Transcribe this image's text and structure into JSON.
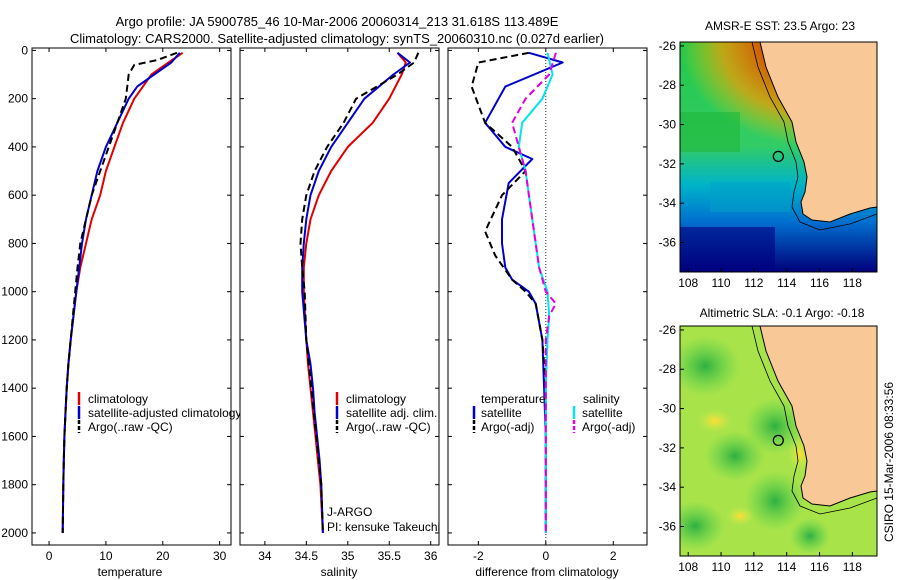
{
  "header": {
    "line1": "Argo profile: JA 5900785_46 10-Mar-2006 20060314_213 31.618S 113.489E",
    "line2": "Climatology: CARS2000. Satellite-adjusted climatology: synTS_20060310.nc (0.027d earlier)"
  },
  "side_stamp": "CSIRO 15-Mar-2006 08:33:56",
  "colors": {
    "climatology": "#e00000",
    "satellite": "#0000cc",
    "argo": "#000000",
    "sal_satellite": "#00e5ee",
    "sal_argo": "#e000e0"
  },
  "chart_data": [
    {
      "type": "line",
      "id": "temperature",
      "xlabel": "temperature",
      "ylim": [
        2050,
        -10
      ],
      "xlim": [
        -3,
        32
      ],
      "xticks": [
        0,
        10,
        20,
        30
      ],
      "yticks": [
        0,
        200,
        400,
        600,
        800,
        1000,
        1200,
        1400,
        1600,
        1800,
        2000
      ],
      "legend": [
        "climatology",
        "satellite-adjusted climatology",
        "Argo(..raw -QC)"
      ],
      "series": [
        {
          "name": "climatology",
          "color": "#e00000",
          "dash": "",
          "x": [
            23.5,
            21,
            18,
            16.5,
            15,
            13,
            11.5,
            10,
            9,
            7.5,
            6.5,
            5.5,
            4.8,
            4.3,
            3.8,
            3.4,
            3.1,
            2.9,
            2.7,
            2.6,
            2.5,
            2.4
          ],
          "y": [
            10,
            50,
            100,
            150,
            200,
            300,
            400,
            500,
            600,
            700,
            800,
            900,
            1000,
            1100,
            1200,
            1300,
            1400,
            1500,
            1600,
            1700,
            1800,
            2000
          ]
        },
        {
          "name": "satellite-adjusted climatology",
          "color": "#0000cc",
          "dash": "",
          "x": [
            23,
            21.5,
            18.5,
            15.5,
            14,
            12,
            10,
            8.5,
            7.5,
            6.5,
            5.8,
            5.3,
            4.8,
            4.3,
            3.8,
            3.4,
            3.1,
            2.9,
            2.7,
            2.6,
            2.5,
            2.4
          ],
          "y": [
            10,
            50,
            100,
            150,
            200,
            300,
            400,
            500,
            600,
            700,
            800,
            900,
            1000,
            1100,
            1200,
            1300,
            1400,
            1500,
            1600,
            1700,
            1800,
            2000
          ]
        },
        {
          "name": "Argo(..raw -QC)",
          "color": "#000000",
          "dash": "7,4",
          "x": [
            22.5,
            19,
            15,
            14,
            13.5,
            12,
            10.5,
            9,
            7.5,
            6.5,
            5.5,
            5,
            4.6,
            4.2,
            3.8,
            3.4,
            3.1,
            2.9,
            2.7,
            2.6,
            2.5,
            2.4
          ],
          "y": [
            10,
            40,
            60,
            100,
            200,
            300,
            400,
            500,
            600,
            700,
            800,
            900,
            1000,
            1100,
            1200,
            1300,
            1400,
            1500,
            1600,
            1700,
            1800,
            2000
          ]
        }
      ]
    },
    {
      "type": "line",
      "id": "salinity",
      "xlabel": "salinity",
      "ylim": [
        2050,
        -10
      ],
      "xlim": [
        33.7,
        36.1
      ],
      "xticks": [
        34,
        34.5,
        35,
        35.5,
        36
      ],
      "legend": [
        "climatology",
        "satellite adj. clim.",
        "Argo(..raw -QC)"
      ],
      "annotation": [
        "J-ARGO",
        "PI: kensuke Takeuchi"
      ],
      "series": [
        {
          "name": "climatology",
          "color": "#e00000",
          "dash": "",
          "x": [
            35.6,
            35.7,
            35.65,
            35.5,
            35.3,
            35.0,
            34.8,
            34.65,
            34.55,
            34.5,
            34.47,
            34.47,
            34.5,
            34.52,
            34.55,
            34.58,
            34.61,
            34.64,
            34.67,
            34.7
          ],
          "y": [
            10,
            50,
            100,
            200,
            300,
            400,
            500,
            600,
            700,
            800,
            900,
            1000,
            1200,
            1300,
            1400,
            1500,
            1600,
            1700,
            1800,
            2000
          ]
        },
        {
          "name": "satellite adj. clim.",
          "color": "#0000cc",
          "dash": "",
          "x": [
            35.6,
            35.75,
            35.55,
            35.2,
            35.0,
            34.8,
            34.65,
            34.55,
            34.5,
            34.47,
            34.45,
            34.45,
            34.5,
            34.55,
            34.58,
            34.6,
            34.63,
            34.66,
            34.68,
            34.7
          ],
          "y": [
            10,
            50,
            100,
            200,
            300,
            400,
            500,
            600,
            700,
            800,
            900,
            1000,
            1200,
            1300,
            1400,
            1500,
            1600,
            1700,
            1800,
            2000
          ]
        },
        {
          "name": "Argo(..raw -QC)",
          "color": "#000000",
          "dash": "7,4",
          "x": [
            35.85,
            35.8,
            35.6,
            35.1,
            34.95,
            34.75,
            34.6,
            34.5,
            34.45,
            34.43,
            34.45,
            34.48,
            34.5,
            34.53,
            34.56,
            34.59,
            34.62,
            34.65,
            34.68,
            34.7
          ],
          "y": [
            10,
            50,
            100,
            200,
            300,
            400,
            500,
            600,
            700,
            800,
            900,
            1000,
            1200,
            1300,
            1400,
            1500,
            1600,
            1700,
            1800,
            2000
          ]
        }
      ]
    },
    {
      "type": "line",
      "id": "difference",
      "xlabel": "difference from climatology",
      "ylim": [
        2050,
        -10
      ],
      "xlim": [
        -2.9,
        3.0
      ],
      "xticks": [
        -2,
        0,
        2
      ],
      "zero_line": 0,
      "legend_left_title": "temperature",
      "legend_right_title": "salinity",
      "legend_left": [
        "satellite",
        "Argo(-adj)"
      ],
      "legend_right": [
        "satellite",
        "Argo(-adj)"
      ],
      "series": [
        {
          "name": "temperature satellite",
          "color": "#0000cc",
          "dash": "",
          "x": [
            -0.5,
            0.5,
            -1.2,
            -1.8,
            -1.2,
            -0.4,
            -1.1,
            -1.3,
            -1.3,
            -1.2,
            -1.0,
            -0.5,
            -0.3,
            -0.1,
            -0.05,
            0,
            0,
            0,
            0
          ],
          "y": [
            10,
            50,
            150,
            300,
            400,
            450,
            550,
            700,
            800,
            900,
            950,
            1000,
            1050,
            1200,
            1400,
            1600,
            1800,
            1900,
            2000
          ]
        },
        {
          "name": "temperature Argo(-adj)",
          "color": "#000000",
          "dash": "7,4",
          "x": [
            -0.5,
            -2.0,
            -2.2,
            -1.8,
            -1.0,
            -0.6,
            -1.3,
            -1.8,
            -1.5,
            -1.0,
            -0.6,
            -0.3,
            -0.1,
            0,
            0,
            0,
            0
          ],
          "y": [
            10,
            50,
            150,
            300,
            400,
            500,
            600,
            750,
            850,
            950,
            1000,
            1050,
            1200,
            1400,
            1600,
            1800,
            2000
          ]
        },
        {
          "name": "salinity satellite",
          "color": "#00e5ee",
          "dash": "",
          "x": [
            0.05,
            0.2,
            -0.1,
            -0.7,
            -0.8,
            -0.6,
            -0.5,
            -0.4,
            -0.3,
            -0.2,
            0.05,
            0.1,
            0.05,
            0,
            0,
            0,
            0
          ],
          "y": [
            10,
            100,
            200,
            300,
            400,
            500,
            600,
            700,
            800,
            900,
            1000,
            1100,
            1200,
            1400,
            1600,
            1800,
            2000
          ]
        },
        {
          "name": "salinity Argo(-adj)",
          "color": "#e000e0",
          "dash": "7,4",
          "x": [
            0.3,
            0.1,
            -0.6,
            -1.0,
            -0.8,
            -0.6,
            -0.5,
            -0.4,
            -0.3,
            -0.2,
            0,
            0.3,
            0.1,
            0,
            0,
            0,
            0
          ],
          "y": [
            10,
            100,
            200,
            300,
            400,
            500,
            600,
            700,
            800,
            900,
            1000,
            1050,
            1100,
            1200,
            1400,
            1800,
            2000
          ]
        }
      ]
    },
    {
      "type": "heatmap",
      "id": "sst_map",
      "title": "AMSR-E SST: 23.5 Argo: 23",
      "xlim": [
        107.5,
        119.5
      ],
      "ylim": [
        -37.5,
        -25.8
      ],
      "xticks": [
        108,
        110,
        112,
        114,
        116,
        118
      ],
      "yticks": [
        -26,
        -28,
        -30,
        -32,
        -34,
        -36
      ],
      "marker": {
        "lon": 113.489,
        "lat": -31.618
      }
    },
    {
      "type": "heatmap",
      "id": "sla_map",
      "title": "Altimetric SLA: -0.1 Argo: -0.18",
      "xlim": [
        107.5,
        119.5
      ],
      "ylim": [
        -37.5,
        -25.8
      ],
      "xticks": [
        108,
        110,
        112,
        114,
        116,
        118
      ],
      "yticks": [
        -26,
        -28,
        -30,
        -32,
        -34,
        -36
      ],
      "marker": {
        "lon": 113.489,
        "lat": -31.618
      }
    }
  ]
}
